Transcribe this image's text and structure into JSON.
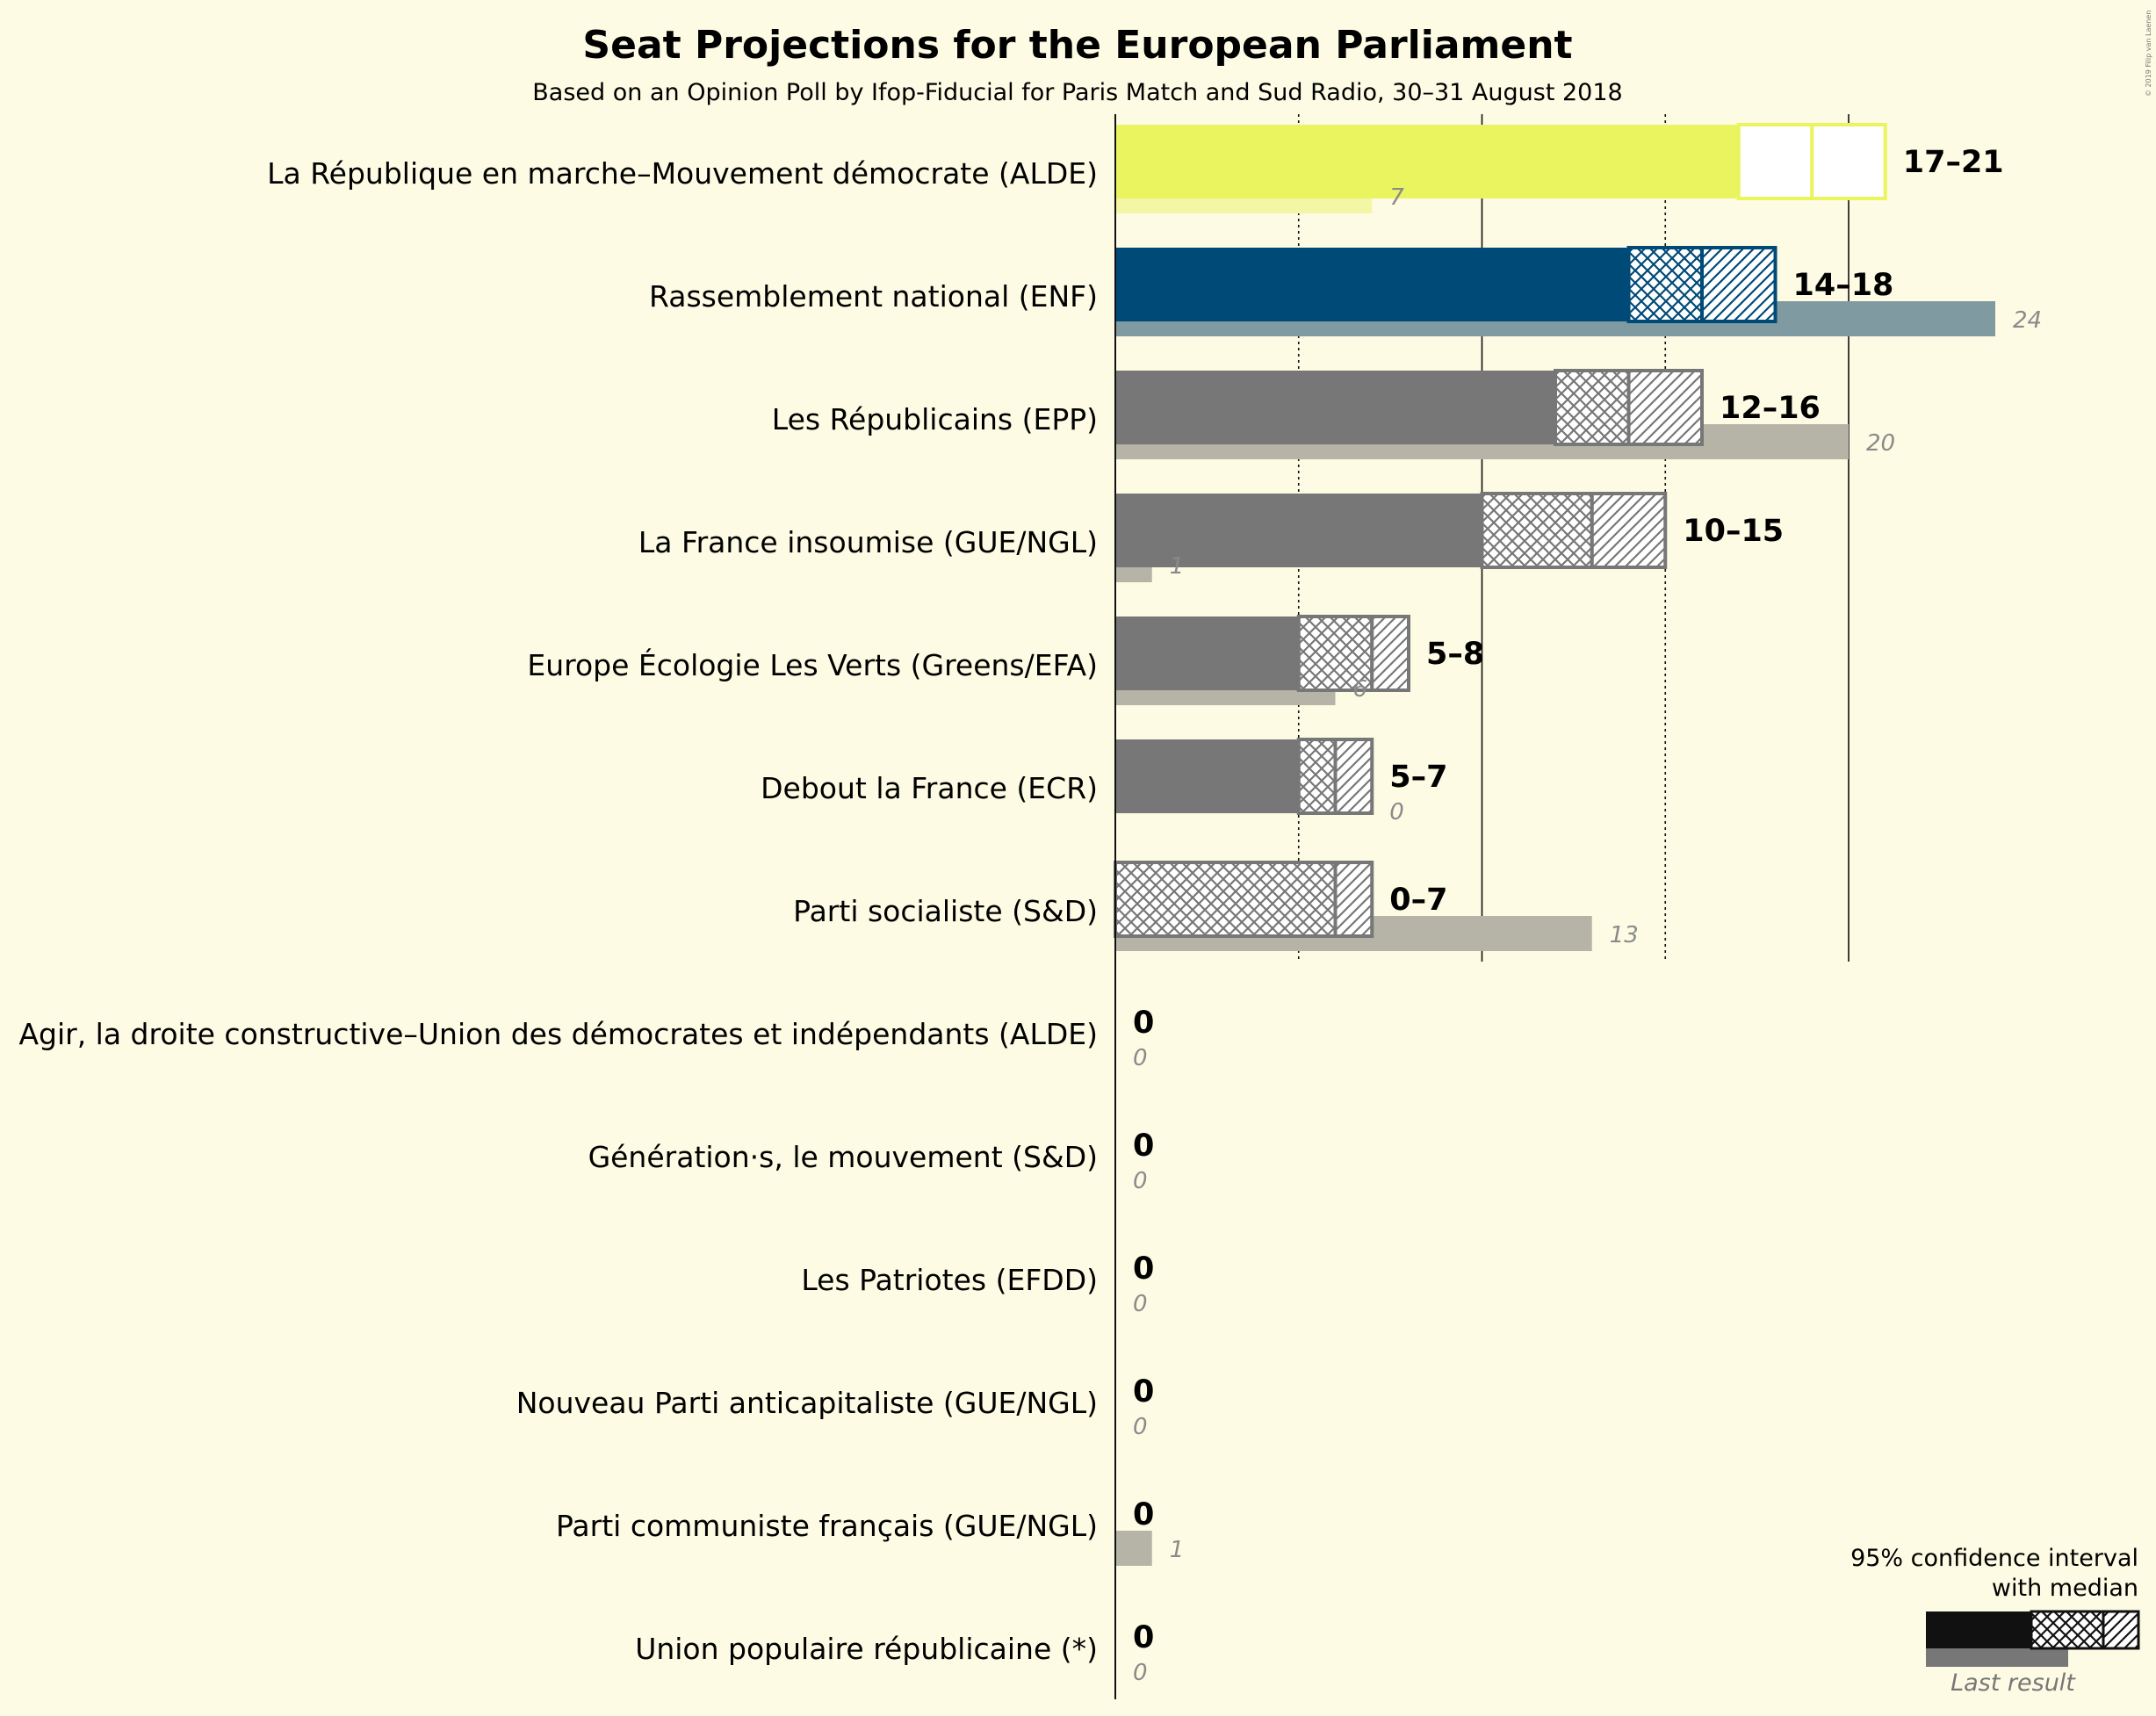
{
  "title": "Seat Projections for the European Parliament",
  "subtitle": "Based on an Opinion Poll by Ifop-Fiducial for Paris Match and Sud Radio, 30–31 August 2018",
  "copyright": "© 2019 Filip van Laenen",
  "legend": {
    "line1": "95% confidence interval",
    "line2": "with median",
    "last_result": "Last result"
  },
  "colors": {
    "background": "#fdfbe3",
    "default_bar": "#777777",
    "default_last": "#b6b4a6",
    "alde_bar": "#eaf45e",
    "alde_last": "#f3f7a5",
    "enf_bar": "#004a77",
    "enf_last": "#7f9aa0"
  },
  "chart_data": {
    "type": "bar",
    "orientation": "horizontal",
    "xlim": [
      0,
      24
    ],
    "gridlines": [
      5,
      10,
      15,
      20
    ],
    "series_fields": [
      "ci_low",
      "median",
      "ci_high",
      "last_result"
    ],
    "categories": [
      "La République en marche–Mouvement démocrate (ALDE)",
      "Rassemblement national (ENF)",
      "Les Républicains (EPP)",
      "La France insoumise (GUE/NGL)",
      "Europe Écologie Les Verts (Greens/EFA)",
      "Debout la France (ECR)",
      "Parti socialiste (S&D)",
      "Agir, la droite constructive–Union des démocrates et indépendants (ALDE)",
      "Génération·s, le mouvement (S&D)",
      "Les Patriotes (EFDD)",
      "Nouveau Parti anticapitaliste (GUE/NGL)",
      "Parti communiste français (GUE/NGL)",
      "Union populaire républicaine (*)"
    ],
    "parties": [
      {
        "name": "La République en marche–Mouvement démocrate (ALDE)",
        "range": "17–21",
        "ci_low": 17,
        "median": 19,
        "ci_high": 21,
        "last": 7,
        "last_label": "7",
        "bar_color": "#eaf45e",
        "last_color": "#f3f7a5",
        "pattern_color": "#ffffff",
        "outline": "#eaf45e"
      },
      {
        "name": "Rassemblement national (ENF)",
        "range": "14–18",
        "ci_low": 14,
        "median": 16,
        "ci_high": 18,
        "last": 24,
        "last_label": "24",
        "bar_color": "#004a77",
        "last_color": "#7f9aa0",
        "pattern_color": "#004a77",
        "outline": "#004a77"
      },
      {
        "name": "Les Républicains (EPP)",
        "range": "12–16",
        "ci_low": 12,
        "median": 14,
        "ci_high": 16,
        "last": 20,
        "last_label": "20",
        "bar_color": "#777777",
        "last_color": "#b6b4a6",
        "pattern_color": "#777777",
        "outline": "#777777"
      },
      {
        "name": "La France insoumise (GUE/NGL)",
        "range": "10–15",
        "ci_low": 10,
        "median": 13,
        "ci_high": 15,
        "last": 1,
        "last_label": "1",
        "bar_color": "#777777",
        "last_color": "#b6b4a6",
        "pattern_color": "#777777",
        "outline": "#777777"
      },
      {
        "name": "Europe Écologie Les Verts (Greens/EFA)",
        "range": "5–8",
        "ci_low": 5,
        "median": 7,
        "ci_high": 8,
        "last": 6,
        "last_label": "6",
        "bar_color": "#777777",
        "last_color": "#b6b4a6",
        "pattern_color": "#777777",
        "outline": "#777777"
      },
      {
        "name": "Debout la France (ECR)",
        "range": "5–7",
        "ci_low": 5,
        "median": 6,
        "ci_high": 7,
        "last": 0,
        "last_label": "0",
        "bar_color": "#777777",
        "last_color": "#b6b4a6",
        "pattern_color": "#777777",
        "outline": "#777777"
      },
      {
        "name": "Parti socialiste (S&D)",
        "range": "0–7",
        "ci_low": 0,
        "median": 6,
        "ci_high": 7,
        "last": 13,
        "last_label": "13",
        "bar_color": "#777777",
        "last_color": "#b6b4a6",
        "pattern_color": "#777777",
        "outline": "#777777"
      },
      {
        "name": "Agir, la droite constructive–Union des démocrates et indépendants (ALDE)",
        "range": "0",
        "ci_low": 0,
        "median": 0,
        "ci_high": 0,
        "last": 0,
        "last_label": "0",
        "bar_color": "#777777",
        "last_color": "#b6b4a6",
        "pattern_color": "#777777",
        "outline": "#777777"
      },
      {
        "name": "Génération·s, le mouvement (S&D)",
        "range": "0",
        "ci_low": 0,
        "median": 0,
        "ci_high": 0,
        "last": 0,
        "last_label": "0",
        "bar_color": "#777777",
        "last_color": "#b6b4a6",
        "pattern_color": "#777777",
        "outline": "#777777"
      },
      {
        "name": "Les Patriotes (EFDD)",
        "range": "0",
        "ci_low": 0,
        "median": 0,
        "ci_high": 0,
        "last": 0,
        "last_label": "0",
        "bar_color": "#777777",
        "last_color": "#b6b4a6",
        "pattern_color": "#777777",
        "outline": "#777777"
      },
      {
        "name": "Nouveau Parti anticapitaliste (GUE/NGL)",
        "range": "0",
        "ci_low": 0,
        "median": 0,
        "ci_high": 0,
        "last": 0,
        "last_label": "0",
        "bar_color": "#777777",
        "last_color": "#b6b4a6",
        "pattern_color": "#777777",
        "outline": "#777777"
      },
      {
        "name": "Parti communiste français (GUE/NGL)",
        "range": "0",
        "ci_low": 0,
        "median": 0,
        "ci_high": 0,
        "last": 1,
        "last_label": "1",
        "bar_color": "#777777",
        "last_color": "#b6b4a6",
        "pattern_color": "#777777",
        "outline": "#777777"
      },
      {
        "name": "Union populaire républicaine (*)",
        "range": "0",
        "ci_low": 0,
        "median": 0,
        "ci_high": 0,
        "last": 0,
        "last_label": "0",
        "bar_color": "#777777",
        "last_color": "#b6b4a6",
        "pattern_color": "#777777",
        "outline": "#777777"
      }
    ]
  }
}
